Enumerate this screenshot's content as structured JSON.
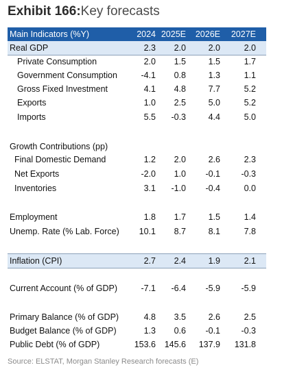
{
  "title": {
    "number": "Exhibit 166:",
    "text": "Key forecasts"
  },
  "table": {
    "header": {
      "label": "Main Indicators (%Y)",
      "years": [
        "2024",
        "2025E",
        "2026E",
        "2027E"
      ]
    },
    "rows": [
      {
        "label": "Real GDP",
        "values": [
          "2.3",
          "2.0",
          "2.0",
          "2.0"
        ]
      },
      {
        "label": "Private Consumption",
        "values": [
          "2.0",
          "1.5",
          "1.5",
          "1.7"
        ]
      },
      {
        "label": "Government Consumption",
        "values": [
          "-4.1",
          "0.8",
          "1.3",
          "1.1"
        ]
      },
      {
        "label": "Gross Fixed Investment",
        "values": [
          "4.1",
          "4.8",
          "7.7",
          "5.2"
        ]
      },
      {
        "label": "Exports",
        "values": [
          "1.0",
          "2.5",
          "5.0",
          "5.2"
        ]
      },
      {
        "label": "Imports",
        "values": [
          "5.5",
          "-0.3",
          "4.4",
          "5.0"
        ]
      },
      {
        "label": "Growth Contributions (pp)",
        "values": [
          "",
          "",
          "",
          ""
        ]
      },
      {
        "label": "Final Domestic Demand",
        "values": [
          "1.2",
          "2.0",
          "2.6",
          "2.3"
        ]
      },
      {
        "label": "Net Exports",
        "values": [
          "-2.0",
          "1.0",
          "-0.1",
          "-0.3"
        ]
      },
      {
        "label": "Inventories",
        "values": [
          "3.1",
          "-1.0",
          "-0.4",
          "0.0"
        ]
      },
      {
        "label": "Employment",
        "values": [
          "1.8",
          "1.7",
          "1.5",
          "1.4"
        ]
      },
      {
        "label": "Unemp. Rate (% Lab. Force)",
        "values": [
          "10.1",
          "8.7",
          "8.1",
          "7.8"
        ]
      },
      {
        "label": "Inflation (CPI)",
        "values": [
          "2.7",
          "2.4",
          "1.9",
          "2.1"
        ]
      },
      {
        "label": "Current Account (% of GDP)",
        "values": [
          "-7.1",
          "-6.4",
          "-5.9",
          "-5.9"
        ]
      },
      {
        "label": "Primary Balance (% of GDP)",
        "values": [
          "4.8",
          "3.5",
          "2.6",
          "2.5"
        ]
      },
      {
        "label": "Budget Balance (% of GDP)",
        "values": [
          "1.3",
          "0.6",
          "-0.1",
          "-0.3"
        ]
      },
      {
        "label": "Public Debt (% of GDP)",
        "values": [
          "153.6",
          "145.6",
          "137.9",
          "131.8"
        ]
      }
    ]
  },
  "source": "Source: ELSTAT, Morgan Stanley Research forecasts (E)",
  "colors": {
    "header_bg": "#1f5ea8",
    "shaded_bg": "#dce8f5"
  }
}
